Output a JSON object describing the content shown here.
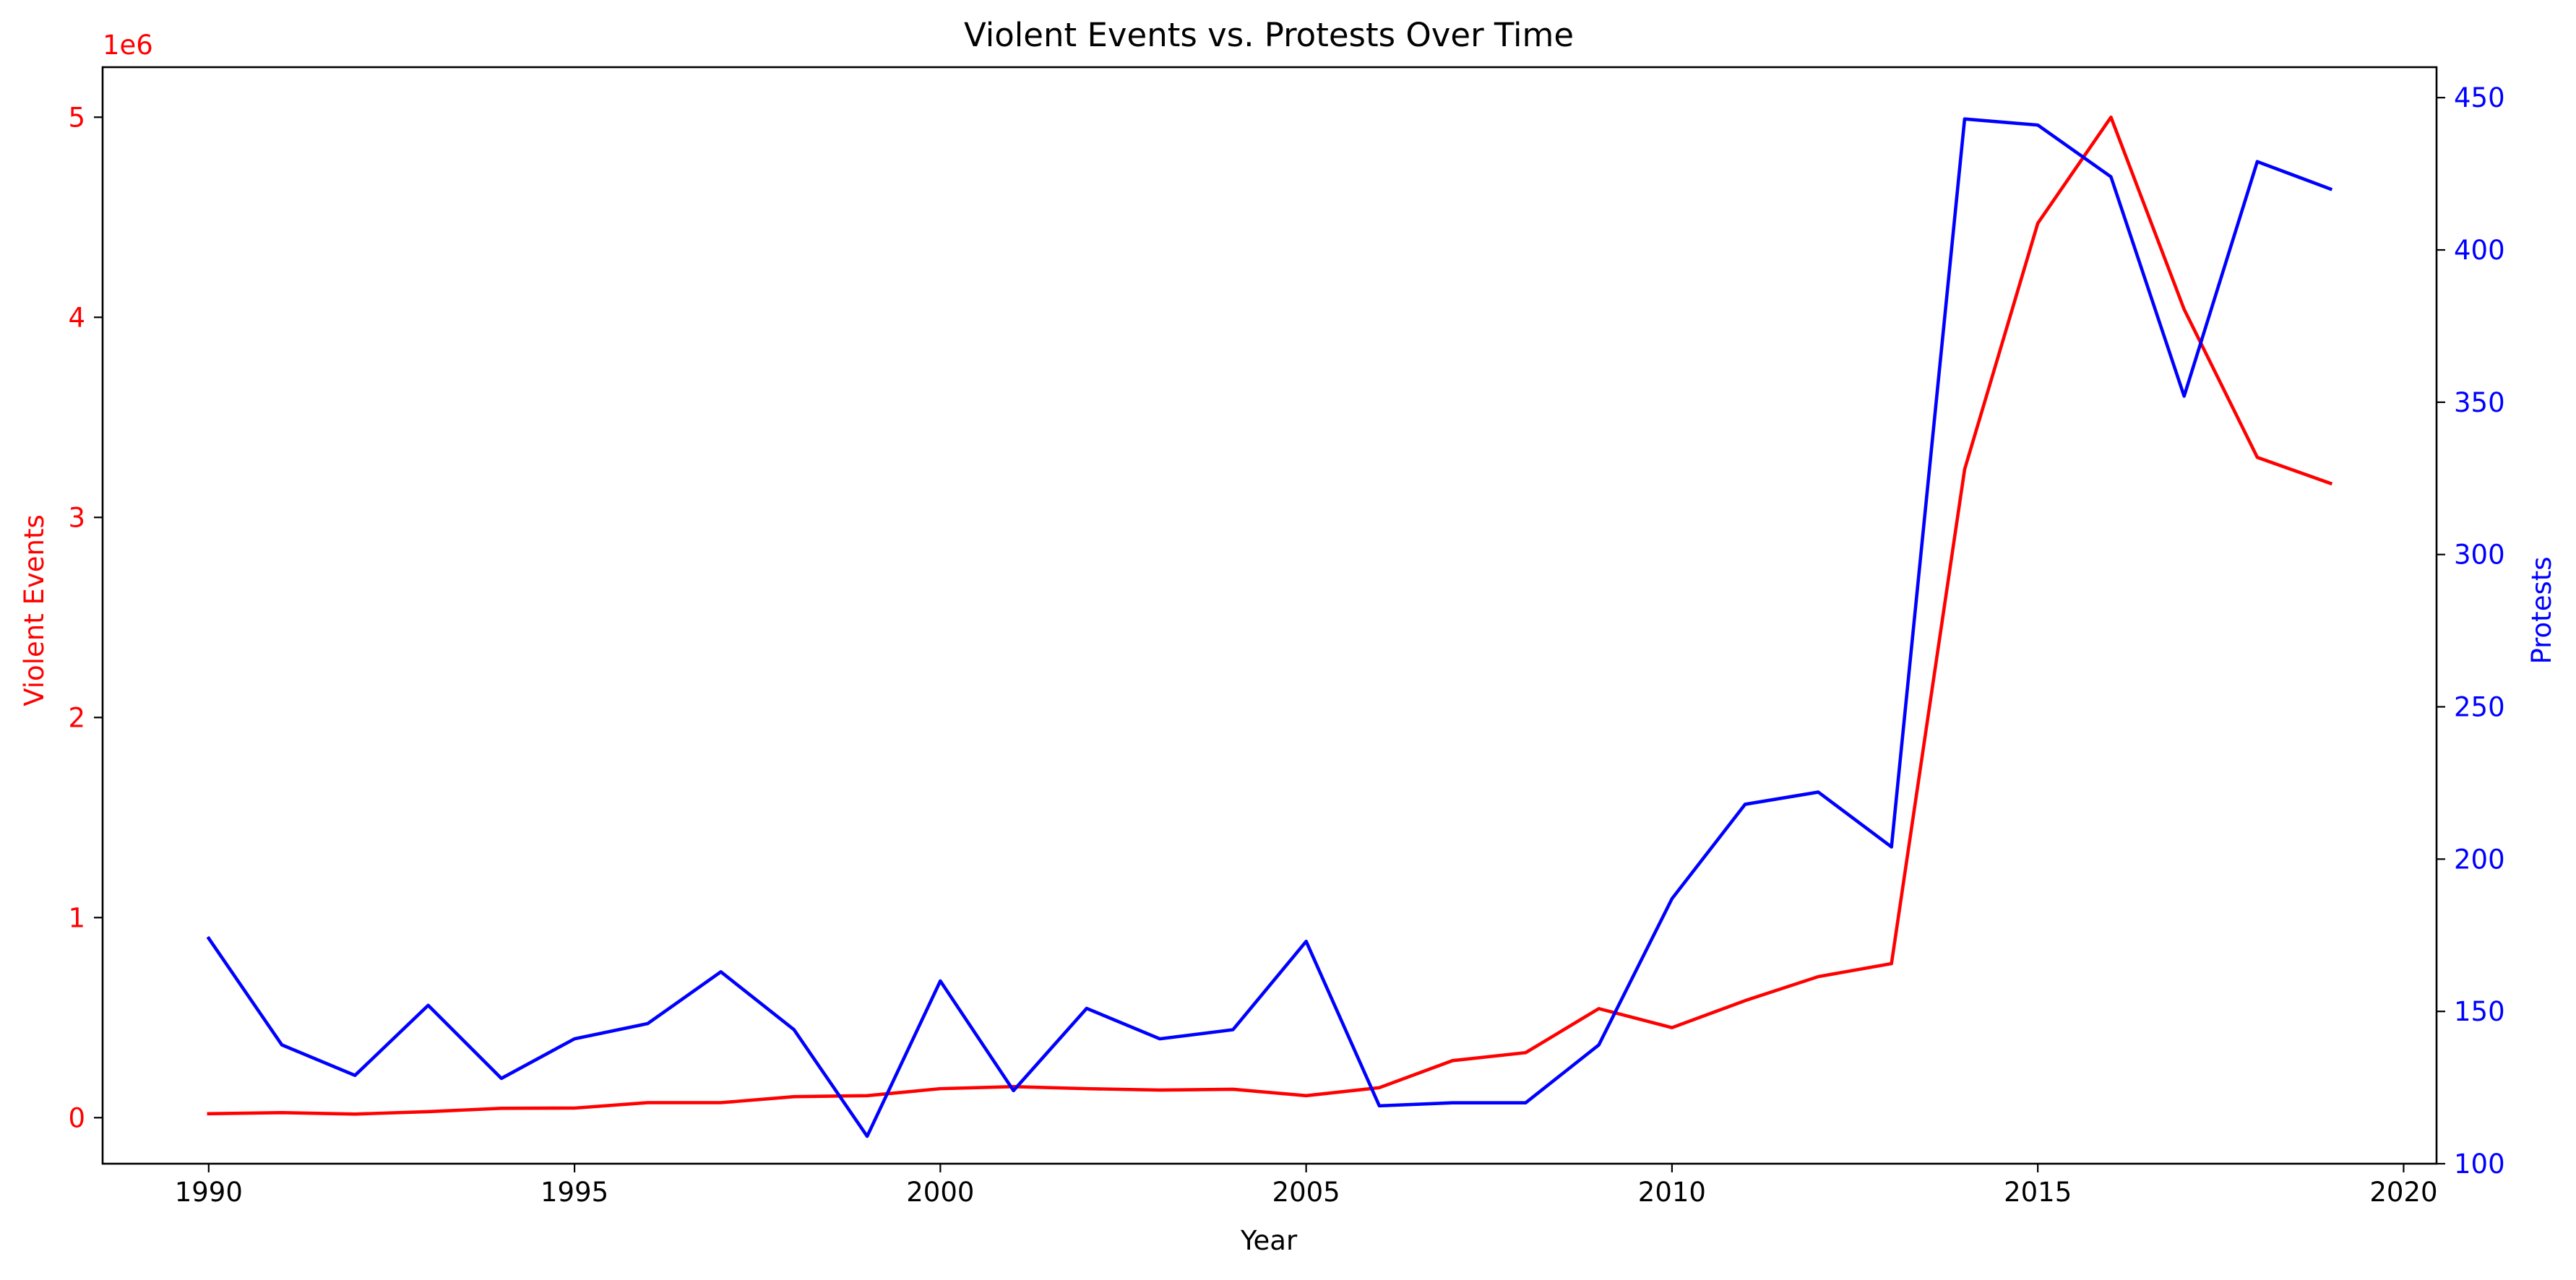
{
  "chart_data": {
    "type": "line",
    "title": "Violent Events vs. Protests Over Time",
    "xlabel": "Year",
    "x": [
      1990,
      1991,
      1992,
      1993,
      1994,
      1995,
      1996,
      1997,
      1998,
      1999,
      2000,
      2001,
      2002,
      2003,
      2004,
      2005,
      2006,
      2007,
      2008,
      2009,
      2010,
      2011,
      2012,
      2013,
      2014,
      2015,
      2016,
      2017,
      2018,
      2019
    ],
    "xlim": [
      1988.55,
      2020.45
    ],
    "xticks": [
      1990,
      1995,
      2000,
      2005,
      2010,
      2015,
      2020
    ],
    "xtick_labels": [
      "1990",
      "1995",
      "2000",
      "2005",
      "2010",
      "2015",
      "2020"
    ],
    "left_axis": {
      "label": "Violent Events",
      "color": "#ff0000",
      "offset_label": "1e6",
      "ylim": [
        -0.23,
        5.25
      ],
      "ticks": [
        0,
        1,
        2,
        3,
        4,
        5
      ],
      "tick_labels": [
        "0",
        "1",
        "2",
        "3",
        "4",
        "5"
      ]
    },
    "right_axis": {
      "label": "Protests",
      "color": "#0000ff",
      "ylim": [
        100,
        460
      ],
      "ticks": [
        100,
        150,
        200,
        250,
        300,
        350,
        400,
        450
      ],
      "tick_labels": [
        "100",
        "150",
        "200",
        "250",
        "300",
        "350",
        "400",
        "450"
      ]
    },
    "series": [
      {
        "axis": "left",
        "color": "#ff0000",
        "values": [
          0.02,
          0.025,
          0.018,
          0.03,
          0.047,
          0.048,
          0.075,
          0.075,
          0.105,
          0.11,
          0.145,
          0.155,
          0.145,
          0.138,
          0.142,
          0.11,
          0.15,
          0.285,
          0.325,
          0.545,
          0.45,
          0.585,
          0.705,
          0.77,
          3.24,
          4.47,
          5.0,
          4.04,
          3.3,
          3.17
        ]
      },
      {
        "axis": "right",
        "color": "#0000ff",
        "values": [
          174,
          139,
          129,
          152,
          128,
          141,
          146,
          163,
          144,
          109,
          160,
          124,
          151,
          141,
          144,
          173,
          119,
          120,
          120,
          139,
          187,
          218,
          222,
          204,
          443,
          441,
          424,
          352,
          429,
          420
        ]
      }
    ],
    "grid": false,
    "legend": "none"
  }
}
